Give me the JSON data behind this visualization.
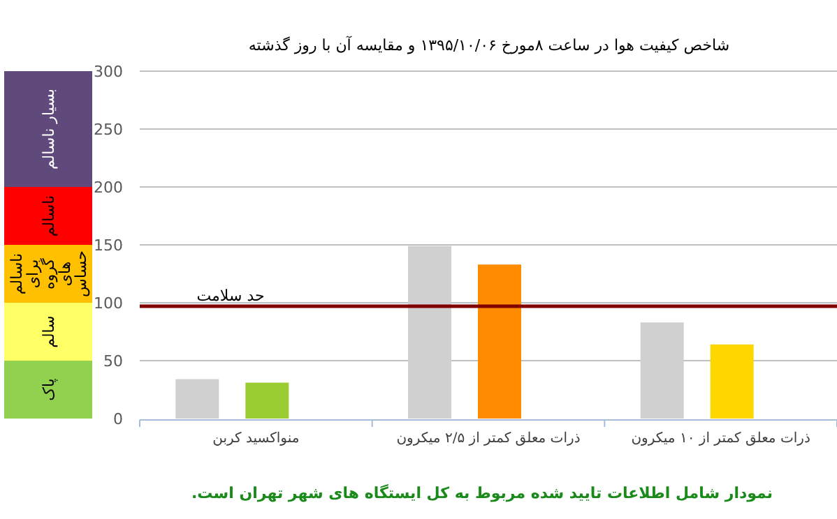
{
  "chart_data": [
    {
      "type": "bar",
      "stacked": true,
      "categories": [
        null
      ],
      "ylim": [
        0,
        300
      ],
      "tick_labels": false,
      "series": [
        {
          "name": "پاک",
          "color": "#92d050",
          "values": [
            50
          ]
        },
        {
          "name": "سالم",
          "color": "#ffff66",
          "values": [
            50
          ]
        },
        {
          "name": "ناسالم برای گروه های حساس",
          "color": "#ffc000",
          "values": [
            50
          ]
        },
        {
          "name": "ناسالم",
          "color": "#ff0000",
          "values": [
            50
          ]
        },
        {
          "name": "بسیار ناسالم",
          "color": "#604a7b",
          "values": [
            100
          ]
        }
      ]
    },
    {
      "type": "bar",
      "title": "شاخص کیفیت هوا در ساعت ۸مورخ ۱۳۹۵/۱۰/۰۶ و مقایسه آن با روز گذشته",
      "categories": [
        "منواکسید کربن",
        "ذرات معلق کمتر از ۲/۵ میکرون",
        "ذرات معلق کمتر از ۱۰ میکرون"
      ],
      "series": [
        {
          "color": "#d0d0d0",
          "values": [
            34,
            149,
            83
          ]
        },
        {
          "colors": [
            "#9acd32",
            "#ff8c00",
            "#ffd700"
          ],
          "values": [
            31,
            133,
            64
          ]
        }
      ],
      "ylim": [
        0,
        300
      ],
      "yticks": [
        0,
        50,
        100,
        150,
        200,
        250,
        300
      ],
      "grid": "y",
      "ref_lines": [
        {
          "axis": "y",
          "value": 97,
          "label": "حد سلامت",
          "color": "#800000"
        }
      ],
      "annotations": [
        "نمودار شامل اطلاعات تایید شده مربوط به کل ایستگاه های شهر تهران است."
      ]
    }
  ]
}
